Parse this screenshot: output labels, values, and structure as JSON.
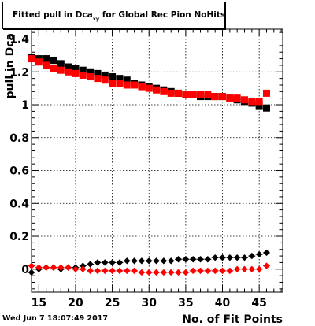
{
  "chart_data": {
    "type": "scatter",
    "title": {
      "main": "Fitted pull in Dca",
      "sub": "xy",
      "tail": " for Global Rec Pion NoHits"
    },
    "xlabel": "No. of Fit Points",
    "ylabel": "pull in Dca",
    "xlim": [
      14,
      48.2
    ],
    "ylim": [
      -0.14,
      1.46
    ],
    "xticks": [
      15,
      20,
      25,
      30,
      35,
      40,
      45
    ],
    "yticks": [
      0,
      0.2,
      0.4,
      0.6,
      0.8,
      1,
      1.2,
      1.4
    ],
    "ytick_labels": [
      "0",
      "0.2",
      "0.4",
      "0.6",
      "0.8",
      "1",
      "1.2",
      "1.4"
    ],
    "grid": true,
    "series": [
      {
        "marker": "square",
        "color": "#000000",
        "x": [
          14,
          15,
          16,
          17,
          18,
          19,
          20,
          21,
          22,
          23,
          24,
          25,
          26,
          27,
          28,
          29,
          30,
          31,
          32,
          33,
          34,
          35,
          36,
          37,
          38,
          39,
          40,
          41,
          42,
          43,
          44,
          45,
          46
        ],
        "y": [
          1.29,
          1.28,
          1.28,
          1.27,
          1.25,
          1.23,
          1.22,
          1.21,
          1.2,
          1.19,
          1.18,
          1.17,
          1.16,
          1.15,
          1.13,
          1.12,
          1.11,
          1.1,
          1.09,
          1.08,
          1.07,
          1.06,
          1.06,
          1.05,
          1.05,
          1.05,
          1.05,
          1.04,
          1.03,
          1.02,
          1.01,
          0.99,
          0.98
        ]
      },
      {
        "marker": "square",
        "color": "#ff0000",
        "x": [
          14,
          15,
          16,
          17,
          18,
          19,
          20,
          21,
          22,
          23,
          24,
          25,
          26,
          27,
          28,
          29,
          30,
          31,
          32,
          33,
          34,
          35,
          36,
          37,
          38,
          39,
          40,
          41,
          42,
          43,
          44,
          45,
          46
        ],
        "y": [
          1.28,
          1.26,
          1.24,
          1.22,
          1.21,
          1.2,
          1.19,
          1.18,
          1.17,
          1.16,
          1.15,
          1.13,
          1.13,
          1.12,
          1.12,
          1.11,
          1.1,
          1.09,
          1.08,
          1.07,
          1.07,
          1.06,
          1.06,
          1.06,
          1.06,
          1.05,
          1.05,
          1.04,
          1.04,
          1.03,
          1.02,
          1.02,
          1.07
        ]
      },
      {
        "marker": "diamond",
        "color": "#000000",
        "x": [
          14,
          15,
          16,
          17,
          18,
          19,
          20,
          21,
          22,
          23,
          24,
          25,
          26,
          27,
          28,
          29,
          30,
          31,
          32,
          33,
          34,
          35,
          36,
          37,
          38,
          39,
          40,
          41,
          42,
          43,
          44,
          45,
          46
        ],
        "y": [
          -0.02,
          0.0,
          0.01,
          0.01,
          0.0,
          0.01,
          0.01,
          0.02,
          0.03,
          0.04,
          0.04,
          0.04,
          0.04,
          0.05,
          0.05,
          0.05,
          0.05,
          0.05,
          0.05,
          0.05,
          0.06,
          0.06,
          0.06,
          0.06,
          0.06,
          0.07,
          0.07,
          0.07,
          0.07,
          0.07,
          0.08,
          0.09,
          0.1
        ]
      },
      {
        "marker": "diamond",
        "color": "#ff0000",
        "x": [
          14,
          15,
          16,
          17,
          18,
          19,
          20,
          21,
          22,
          23,
          24,
          25,
          26,
          27,
          28,
          29,
          30,
          31,
          32,
          33,
          34,
          35,
          36,
          37,
          38,
          39,
          40,
          41,
          42,
          43,
          44,
          45,
          46
        ],
        "y": [
          0.02,
          0.01,
          0.01,
          0.01,
          0.01,
          0.01,
          0.0,
          0.0,
          -0.01,
          -0.01,
          -0.01,
          -0.01,
          -0.01,
          -0.01,
          -0.01,
          -0.02,
          -0.02,
          -0.02,
          -0.02,
          -0.02,
          -0.02,
          -0.02,
          -0.01,
          -0.01,
          -0.01,
          -0.01,
          -0.01,
          -0.01,
          0.0,
          0.0,
          0.0,
          0.0,
          0.02
        ]
      }
    ]
  },
  "timestamp": "Wed Jun  7 18:07:49 2017"
}
